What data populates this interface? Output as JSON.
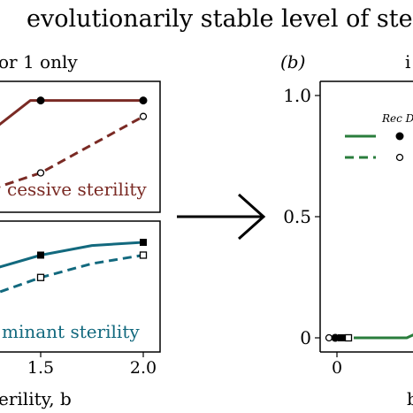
{
  "figure": {
    "title": "evolutionarily stable level of ster",
    "left_header": "or 1 only",
    "right_panel_letter": "(b)",
    "right_header": "i",
    "bottom_right_fragment": "b"
  },
  "chart_data": [
    {
      "panel": "top-left",
      "type": "line",
      "annotation": "cessive sterility",
      "color": "#7a2a24",
      "x_range": [
        1.0,
        2.05
      ],
      "y_range": [
        0.0,
        1.08
      ],
      "series": [
        {
          "style": "solid",
          "marker": "filled-circle",
          "x": [
            1.0,
            1.15,
            1.45,
            2.0
          ],
          "y": [
            0.25,
            0.55,
            1.0,
            1.0
          ],
          "marker_x": [
            1.5,
            2.0
          ]
        },
        {
          "style": "dashed",
          "marker": "open-circle",
          "x": [
            1.0,
            1.5,
            2.0
          ],
          "y": [
            0.0,
            0.32,
            0.85
          ],
          "marker_x": [
            1.5,
            2.0
          ]
        }
      ]
    },
    {
      "panel": "bottom-left",
      "type": "line",
      "annotation": "minant sterility",
      "color": "#12697e",
      "x_range": [
        1.0,
        2.05
      ],
      "y_range": [
        0.0,
        1.08
      ],
      "xlabel": "erility, b",
      "xticks": [
        "1.5",
        "2.0"
      ],
      "series": [
        {
          "style": "solid",
          "marker": "filled-square",
          "x": [
            1.0,
            1.25,
            1.5,
            1.75,
            2.0
          ],
          "y": [
            0.45,
            0.72,
            0.86,
            0.95,
            0.98
          ],
          "marker_x": [
            1.5,
            2.0
          ]
        },
        {
          "style": "dashed",
          "marker": "open-square",
          "x": [
            1.0,
            1.25,
            1.5,
            1.75,
            2.0
          ],
          "y": [
            0.2,
            0.48,
            0.65,
            0.78,
            0.86
          ],
          "marker_x": [
            1.5,
            2.0
          ]
        }
      ]
    },
    {
      "panel": "right",
      "type": "line",
      "color": "#2a7d3c",
      "yticks": [
        "0",
        "0.5",
        "1.0"
      ],
      "xticks": [
        "0"
      ],
      "y_range": [
        0.0,
        1.0
      ],
      "legend": {
        "label_1": "Rec D",
        "label_2": ""
      },
      "series": [
        {
          "style": "solid",
          "x": [
            0.0,
            0.5,
            1.0
          ],
          "y": [
            0.0,
            0.0,
            0.1
          ]
        }
      ],
      "start_markers": [
        "open-circle",
        "filled-circle",
        "filled-square",
        "open-square"
      ]
    }
  ]
}
